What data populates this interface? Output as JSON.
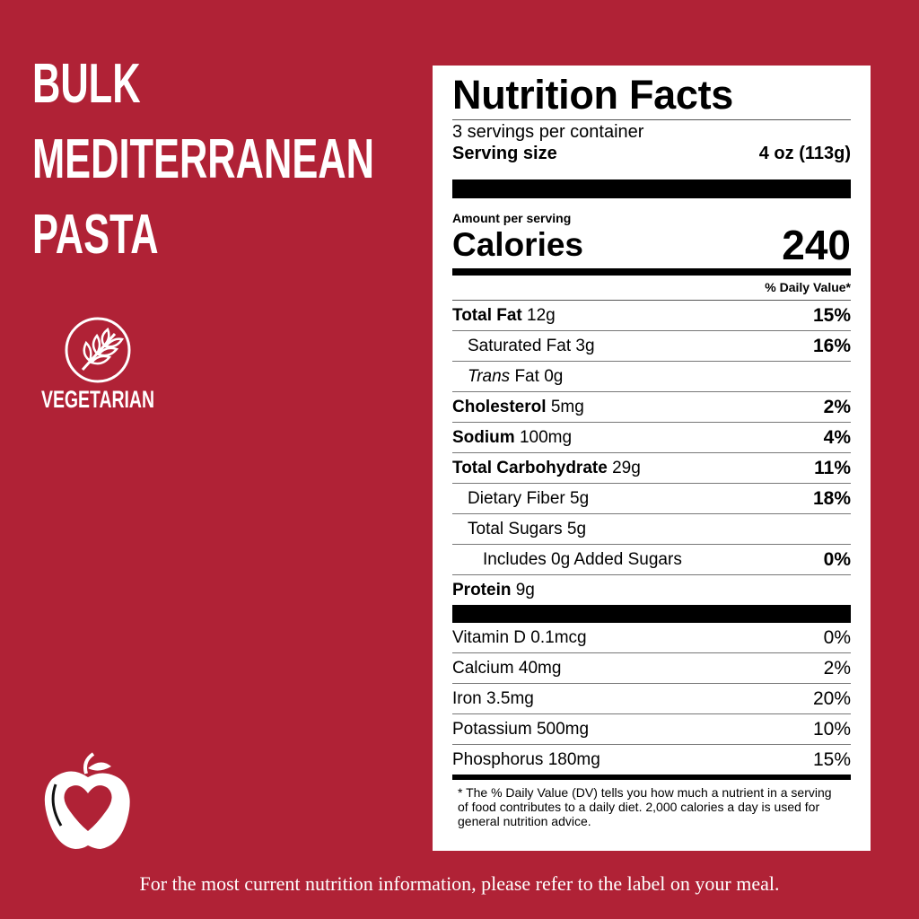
{
  "title": {
    "lines": [
      "BULK",
      "MEDITERRANEAN",
      "PASTA"
    ]
  },
  "badge": {
    "label": "VEGETARIAN"
  },
  "label": {
    "heading": "Nutrition Facts",
    "servings": "3 servings per container",
    "serving_size_label": "Serving size",
    "serving_size": "4 oz (113g)",
    "amount_label": "Amount per serving",
    "calories_label": "Calories",
    "calories": 240,
    "dv_header": "% Daily Value*",
    "nutrients": [
      {
        "name": "Total Fat",
        "amount": "12g",
        "dv": "15%"
      },
      {
        "name": "Saturated Fat",
        "amount": "3g",
        "dv": "16%"
      },
      {
        "name_italic": "Trans",
        "name": "Fat",
        "amount": "0g"
      },
      {
        "name": "Cholesterol",
        "amount": "5mg",
        "dv": "2%"
      },
      {
        "name": "Sodium",
        "amount": "100mg",
        "dv": "4%"
      },
      {
        "name": "Total Carbohydrate",
        "amount": "29g",
        "dv": "11%"
      },
      {
        "name": "Dietary Fiber",
        "amount": "5g",
        "dv": "18%"
      },
      {
        "name": "Total Sugars",
        "amount": "5g"
      },
      {
        "name": "Includes 0g Added Sugars",
        "dv": "0%"
      },
      {
        "name": "Protein",
        "amount": "9g"
      }
    ],
    "vitamins": [
      {
        "name": "Vitamin D",
        "amount": "0.1mcg",
        "dv": "0%"
      },
      {
        "name": "Calcium",
        "amount": "40mg",
        "dv": "2%"
      },
      {
        "name": "Iron",
        "amount": "3.5mg",
        "dv": "20%"
      },
      {
        "name": "Potassium",
        "amount": "500mg",
        "dv": "10%"
      },
      {
        "name": "Phosphorus",
        "amount": "180mg",
        "dv": "15%"
      }
    ],
    "footnote": "* The % Daily Value (DV) tells you how much a nutrient in a serving of food contributes to a daily diet. 2,000 calories a day is used for general nutrition advice."
  },
  "footer": "For the most current nutrition information, please refer to the label on your meal."
}
